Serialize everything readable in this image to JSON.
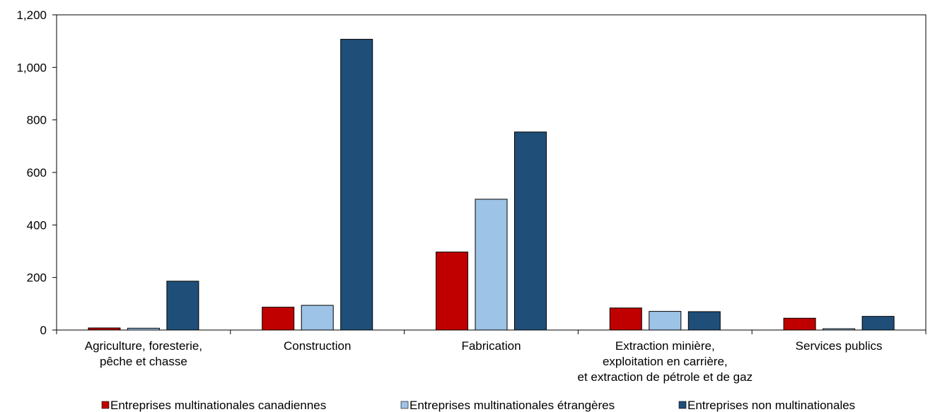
{
  "chart_data": {
    "type": "bar",
    "categories": [
      [
        "Agriculture, foresterie,",
        "pêche et chasse"
      ],
      [
        "Construction"
      ],
      [
        "Fabrication"
      ],
      [
        "Extraction minière,",
        "exploitation en carrière,",
        "et extraction de pétrole et de gaz"
      ],
      [
        "Services publics"
      ]
    ],
    "series": [
      {
        "name": "Entreprises multinationales canadiennes",
        "color": "#c00000",
        "values": [
          8,
          87,
          297,
          84,
          45
        ]
      },
      {
        "name": "Entreprises multinationales étrangères",
        "color": "#9dc3e6",
        "values": [
          7,
          94,
          498,
          71,
          5
        ]
      },
      {
        "name": "Entreprises non multinationales",
        "color": "#1f4e79",
        "values": [
          186,
          1107,
          754,
          70,
          52
        ]
      }
    ],
    "y_ticks": [
      "0",
      "200",
      "400",
      "600",
      "800",
      "1,000",
      "1,200"
    ],
    "ylim": [
      0,
      1200
    ],
    "title": "",
    "xlabel": "",
    "ylabel": "",
    "grid": false,
    "legend_position": "bottom"
  }
}
